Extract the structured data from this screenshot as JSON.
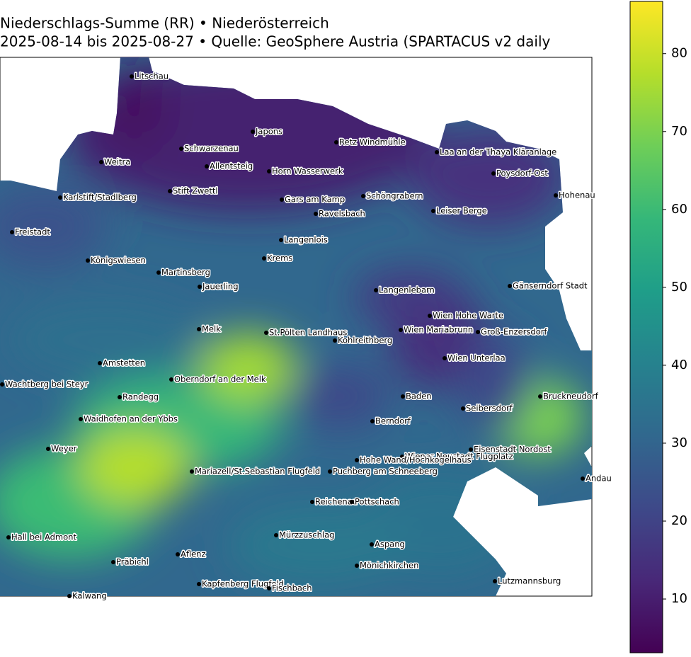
{
  "chart_data": {
    "type": "map",
    "title": "Niederschlags-Summe (RR) • Niederösterreich",
    "subtitle": "2025-08-14 bis 2025-08-27 • Quelle: GeoSphere Austria (SPARTACUS v2 daily",
    "colormap": "viridis",
    "clim": [
      3.1,
      86.7
    ],
    "cticks": [
      10,
      20,
      30,
      40,
      50,
      60,
      70,
      80
    ],
    "stations": [
      "Litschau",
      "Japons",
      "Retz Windmühle",
      "Schwarzenau",
      "Laa an der Thaya Kläranlage",
      "Weitra",
      "Allentsteig",
      "Horn Wasserwerk",
      "Poysdorf-Ost",
      "Stift Zwettl",
      "Schöngrabern",
      "Hohenau",
      "Karlstift/Stadlberg",
      "Gars am Kamp",
      "Ravelsbach",
      "Leiser Berge",
      "Freistadt",
      "Langenlois",
      "Königswiesen",
      "Krems",
      "Martinsberg",
      "Jauerling",
      "Langenlebarn",
      "Gänserndorf Stadt",
      "Wien Hohe Warte",
      "Melk",
      "St.Pölten Landhaus",
      "Wien Mariabrunn",
      "Groß-Enzersdorf",
      "Kohlreithberg",
      "Wien Unterlaa",
      "Amstetten",
      "Oberndorf an der Melk",
      "Wachtberg bei Steyr",
      "Randegg",
      "Baden",
      "Bruckneudorf",
      "Seibersdorf",
      "Waidhofen an der Ybbs",
      "Berndorf",
      "Weyer",
      "Eisenstadt Nordost",
      "Wiener Neustadt Flugplatz",
      "Hohe Wand/Hochkogelhaus",
      "Mariazell/St.Sebastian Flugfeld",
      "Puchberg am Schneeberg",
      "Andau",
      "Reichenau",
      "Pottschach",
      "Hall bei Admont",
      "Mürzzuschlag",
      "Aspang",
      "Aflenz",
      "Präbichl",
      "Mönichkirchen",
      "Lutzmannsburg",
      "Kapfenberg Flugfeld",
      "Fischbach",
      "Kalwang"
    ]
  }
}
